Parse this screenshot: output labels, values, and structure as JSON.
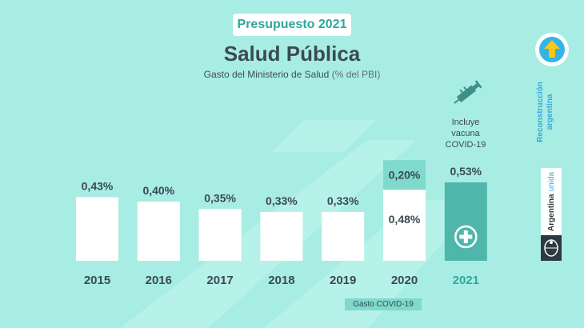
{
  "badge": "Presupuesto 2021",
  "title": "Salud Pública",
  "subtitle": "Gasto del Ministerio de Salud",
  "subtitle_unit": "(% del PBI)",
  "note_lines": [
    "Incluye",
    "vacuna",
    "COVID-19"
  ],
  "side_text_lines": [
    "Reconstrucción",
    "argentina"
  ],
  "brand_lines": [
    "Argentina",
    "unida"
  ],
  "colors": {
    "background": "#a8ede4",
    "bar_white": "#ffffff",
    "bar_covid": "#7fd9cc",
    "bar_2021": "#4fb6ab",
    "accent_text": "#2fa89a",
    "text_dark": "#3a4a52"
  },
  "chart_data": {
    "type": "bar",
    "stacked": true,
    "categories": [
      "2015",
      "2016",
      "2017",
      "2018",
      "2019",
      "2020",
      "2021"
    ],
    "series": [
      {
        "name": "",
        "values": [
          0.43,
          0.4,
          0.35,
          0.33,
          0.33,
          0.48,
          0.53
        ],
        "labels": [
          "0,43%",
          "0,40%",
          "0,35%",
          "0,33%",
          "0,33%",
          "0,48%",
          "0,53%"
        ]
      },
      {
        "name": "Gasto COVID-19",
        "values": [
          0,
          0,
          0,
          0,
          0,
          0.2,
          0
        ],
        "labels": [
          "",
          "",
          "",
          "",
          "",
          "0,20%",
          ""
        ]
      }
    ],
    "highlight_category": "2021",
    "legend": "bottom-center",
    "grid": false,
    "title": "Salud Pública",
    "xlabel": "",
    "ylabel": ""
  },
  "icons": {
    "syringe": "syringe-icon",
    "health_cross": "health-cross-icon",
    "up_arrow": "up-arrow-icon",
    "shield": "shield-icon"
  }
}
